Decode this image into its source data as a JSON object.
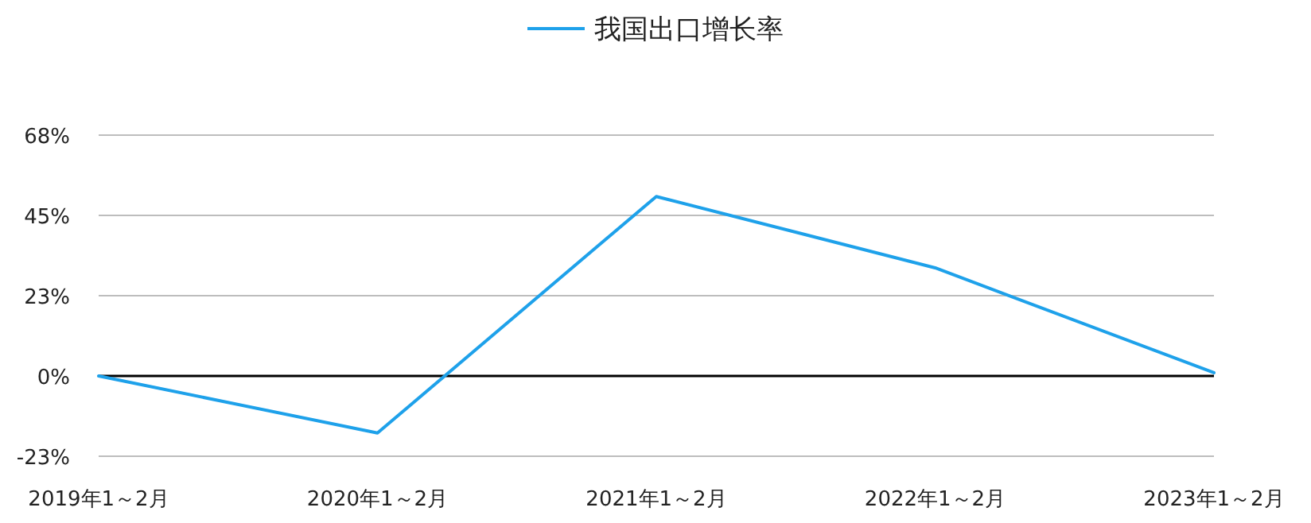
{
  "chart_data": {
    "type": "line",
    "categories": [
      "2019年1～2月",
      "2020年1～2月",
      "2021年1～2月",
      "2022年1～2月",
      "2023年1～2月"
    ],
    "series": [
      {
        "name": "我国出口增长率",
        "color": "#1ea1ea",
        "values": [
          0,
          -16,
          50.3,
          30.3,
          0.9
        ]
      }
    ],
    "ylim": [
      -22.5,
      67.5
    ],
    "yticks": [
      {
        "value": -22.5,
        "label": "-23%"
      },
      {
        "value": 0,
        "label": "0%"
      },
      {
        "value": 22.5,
        "label": "23%"
      },
      {
        "value": 45,
        "label": "45%"
      },
      {
        "value": 67.5,
        "label": "68%"
      }
    ],
    "grid": "y",
    "legend": "top",
    "marker": "none",
    "line_style": "solid"
  }
}
